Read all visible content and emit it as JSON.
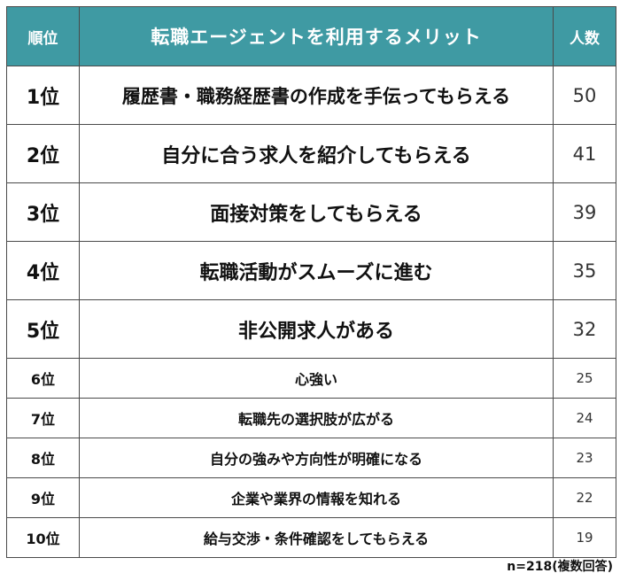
{
  "chart_data": {
    "type": "table",
    "columns": [
      "順位",
      "転職エージェントを利用するメリット",
      "人数"
    ],
    "rows": [
      {
        "rank": "1位",
        "item": "履歴書・職務経歴書の作成を手伝ってもらえる",
        "count": 50
      },
      {
        "rank": "2位",
        "item": "自分に合う求人を紹介してもらえる",
        "count": 41
      },
      {
        "rank": "3位",
        "item": "面接対策をしてもらえる",
        "count": 39
      },
      {
        "rank": "4位",
        "item": "転職活動がスムーズに進む",
        "count": 35
      },
      {
        "rank": "5位",
        "item": "非公開求人がある",
        "count": 32
      },
      {
        "rank": "6位",
        "item": "心強い",
        "count": 25
      },
      {
        "rank": "7位",
        "item": "転職先の選択肢が広がる",
        "count": 24
      },
      {
        "rank": "8位",
        "item": "自分の強みや方向性が明確になる",
        "count": 23
      },
      {
        "rank": "9位",
        "item": "企業や業界の情報を知れる",
        "count": 22
      },
      {
        "rank": "10位",
        "item": "給与交渉・条件確認をしてもらえる",
        "count": 19
      }
    ],
    "note": "n=218(複数回答)",
    "header_color": "#3f9aa3"
  }
}
